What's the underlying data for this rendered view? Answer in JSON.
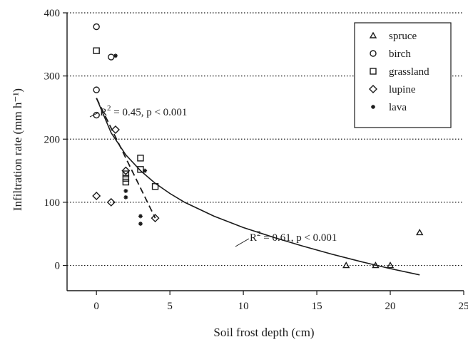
{
  "chart_data": {
    "type": "scatter",
    "xlabel": "Soil frost depth (cm)",
    "ylabel": "Infiltration rate (mm h⁻¹)",
    "xlim": [
      -2,
      25
    ],
    "ylim": [
      -40,
      400
    ],
    "x_ticks": [
      0,
      5,
      10,
      15,
      20,
      25
    ],
    "y_ticks": [
      0,
      100,
      200,
      300,
      400
    ],
    "grid": "horizontal dotted",
    "legend_position": "top-right",
    "series": [
      {
        "name": "spruce",
        "marker": "triangle",
        "points": [
          [
            17,
            0
          ],
          [
            19,
            0
          ],
          [
            20,
            0
          ],
          [
            22,
            52
          ]
        ]
      },
      {
        "name": "birch",
        "marker": "circle",
        "points": [
          [
            0,
            378
          ],
          [
            0,
            278
          ],
          [
            0,
            238
          ],
          [
            1,
            330
          ]
        ]
      },
      {
        "name": "grassland",
        "marker": "square",
        "points": [
          [
            0,
            340
          ],
          [
            2,
            145
          ],
          [
            2,
            138
          ],
          [
            2,
            132
          ],
          [
            3,
            170
          ],
          [
            3,
            152
          ],
          [
            4,
            125
          ]
        ]
      },
      {
        "name": "lupine",
        "marker": "diamond",
        "points": [
          [
            0,
            110
          ],
          [
            1,
            100
          ],
          [
            1.3,
            215
          ],
          [
            2,
            150
          ],
          [
            4,
            75
          ]
        ]
      },
      {
        "name": "lava",
        "marker": "star",
        "points": [
          [
            1.3,
            332
          ],
          [
            2,
            118
          ],
          [
            2,
            108
          ],
          [
            3,
            78
          ],
          [
            3,
            66
          ],
          [
            3.3,
            150
          ]
        ]
      }
    ],
    "fits": [
      {
        "style": "solid",
        "label": "R² = 0.61,  p < 0.001",
        "points": [
          [
            0,
            265
          ],
          [
            1,
            210
          ],
          [
            2,
            175
          ],
          [
            3,
            150
          ],
          [
            4,
            130
          ],
          [
            5,
            114
          ],
          [
            6,
            100
          ],
          [
            8,
            78
          ],
          [
            10,
            60
          ],
          [
            12,
            45
          ],
          [
            14,
            31
          ],
          [
            16,
            18
          ],
          [
            18,
            6
          ],
          [
            20,
            -5
          ],
          [
            22,
            -15
          ]
        ]
      },
      {
        "style": "dashed",
        "label": "R² = 0.45,  p < 0.001",
        "points": [
          [
            0,
            265
          ],
          [
            4,
            75
          ]
        ]
      }
    ],
    "annotations": [
      {
        "text_prefix": "R",
        "sup": "2",
        "text_suffix": " = 0.45,  p < 0.001"
      },
      {
        "text_prefix": "R",
        "sup": "2",
        "text_suffix": " = 0.61,  p < 0.001"
      }
    ]
  }
}
